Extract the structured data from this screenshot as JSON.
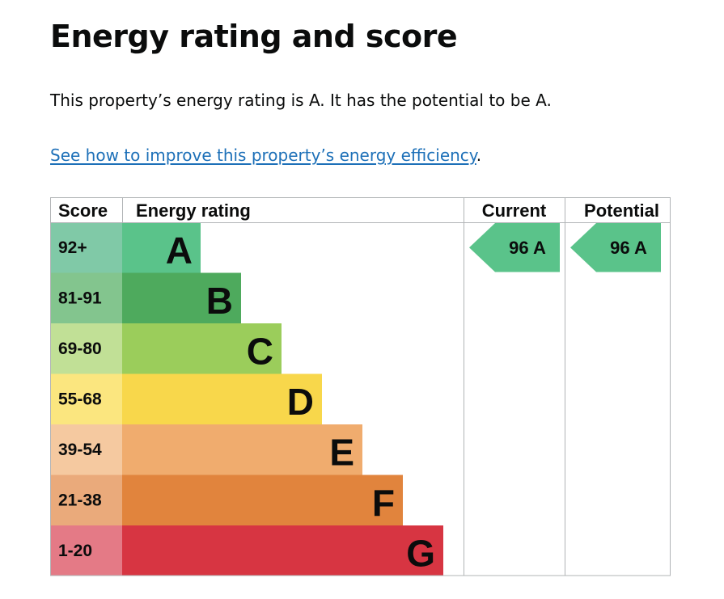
{
  "page": {
    "title": "Energy rating and score",
    "summary": "This property’s energy rating is A. It has the potential to be A.",
    "improve_link": "See how to improve this property’s energy efficiency",
    "improve_link_suffix": "."
  },
  "chart_data": {
    "type": "bar",
    "headers": {
      "score": "Score",
      "rating": "Energy rating",
      "current": "Current",
      "potential": "Potential"
    },
    "bands": [
      {
        "letter": "A",
        "range": "92+",
        "color": "#5ac38a",
        "score_bg": "#80c9a7"
      },
      {
        "letter": "B",
        "range": "81-91",
        "color": "#4eaa5d",
        "score_bg": "#83c58e"
      },
      {
        "letter": "C",
        "range": "69-80",
        "color": "#9bcd5b",
        "score_bg": "#c1e096"
      },
      {
        "letter": "D",
        "range": "55-68",
        "color": "#f8d74b",
        "score_bg": "#fbe67f"
      },
      {
        "letter": "E",
        "range": "39-54",
        "color": "#f0ac6e",
        "score_bg": "#f5c9a0"
      },
      {
        "letter": "F",
        "range": "21-38",
        "color": "#e1843d",
        "score_bg": "#eaaa7b"
      },
      {
        "letter": "G",
        "range": "1-20",
        "color": "#d73542",
        "score_bg": "#e47a86"
      }
    ],
    "current": {
      "score": 96,
      "letter": "A",
      "label": "96  A",
      "color": "#5ac38a"
    },
    "potential": {
      "score": 96,
      "letter": "A",
      "label": "96  A",
      "color": "#5ac38a"
    }
  }
}
